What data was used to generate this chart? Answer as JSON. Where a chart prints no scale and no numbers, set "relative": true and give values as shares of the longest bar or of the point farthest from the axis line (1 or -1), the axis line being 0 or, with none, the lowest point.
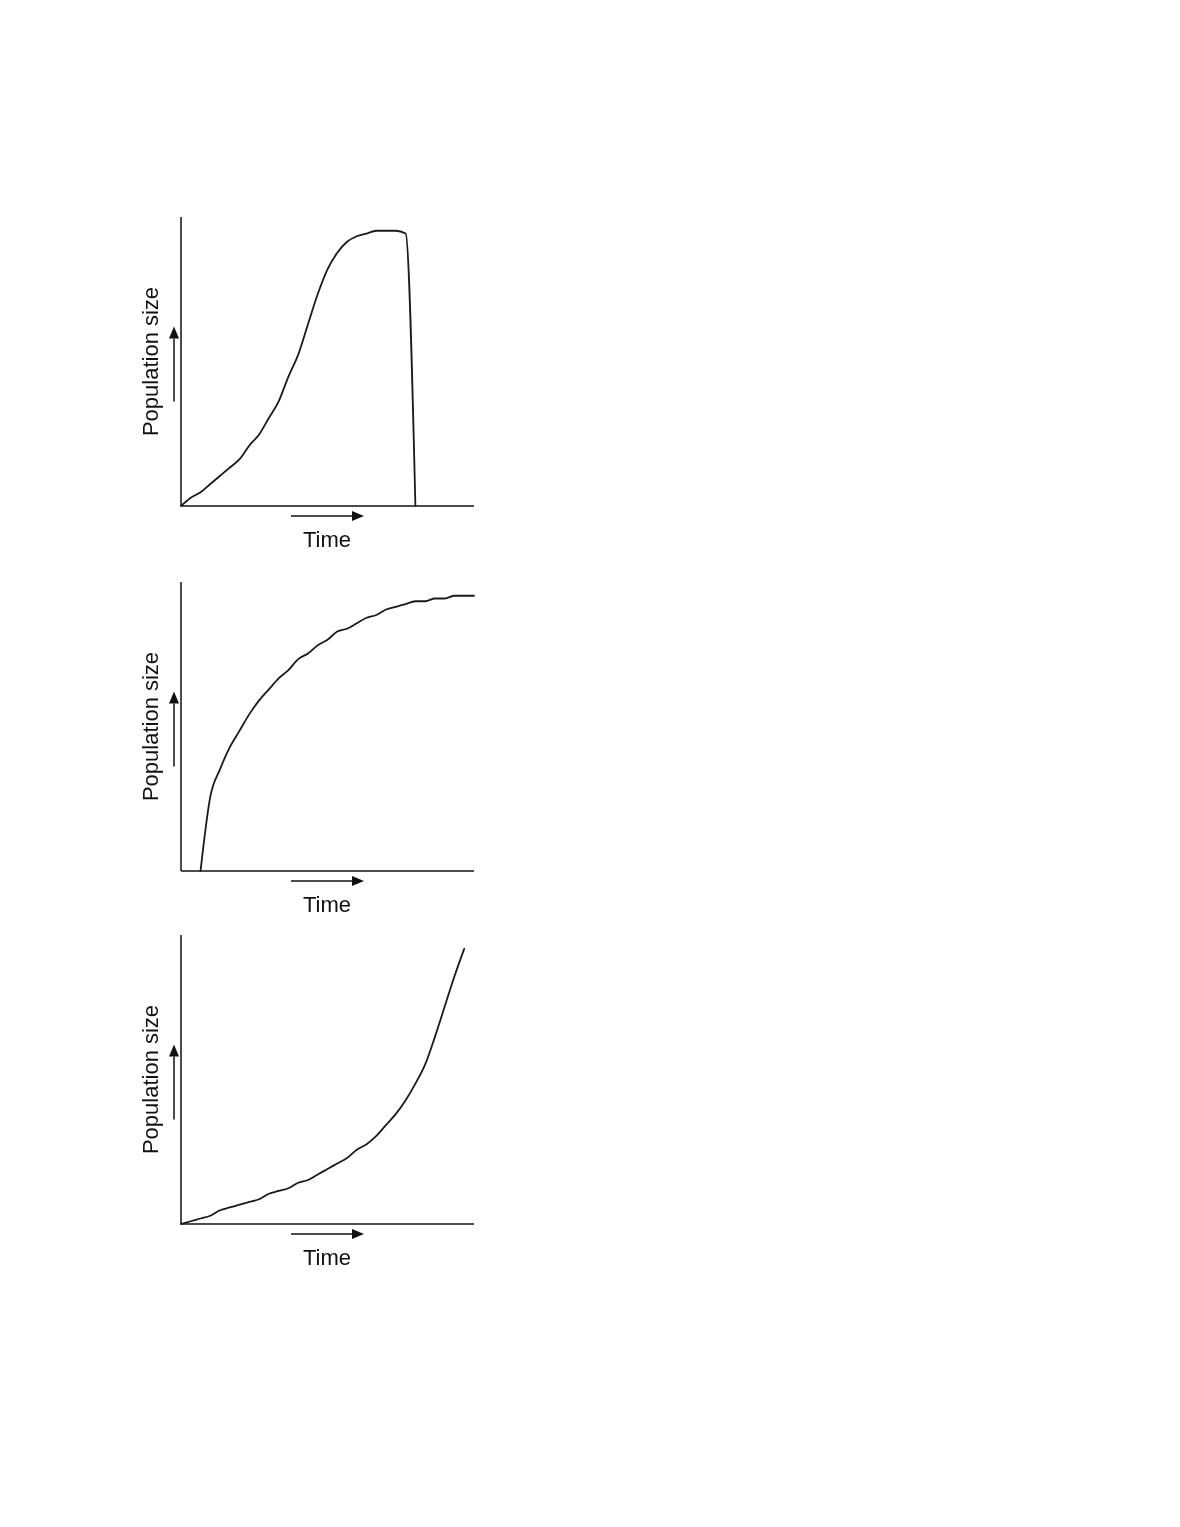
{
  "chart_data": [
    {
      "type": "line",
      "relative": true,
      "xlabel": "Time",
      "ylabel": "Population size",
      "categories": [
        null,
        null,
        null,
        null,
        null,
        null,
        null,
        null,
        null,
        null,
        null,
        null,
        null,
        null,
        null,
        null,
        null,
        null,
        null,
        null,
        null,
        null,
        null,
        null,
        null,
        null,
        null,
        null,
        null,
        null,
        null
      ],
      "series": [
        {
          "color": "#1a1a1a",
          "values": [
            0,
            0.03,
            0.05,
            0.08,
            0.11,
            0.14,
            0.17,
            0.22,
            0.26,
            0.32,
            0.38,
            0.47,
            0.55,
            0.66,
            0.77,
            0.86,
            0.92,
            0.96,
            0.98,
            0.99,
            1,
            1,
            1,
            0.99,
            0,
            null,
            null,
            null,
            null,
            null,
            null
          ]
        }
      ]
    },
    {
      "type": "line",
      "relative": true,
      "xlabel": "Time",
      "ylabel": "Population size",
      "categories": [
        null,
        null,
        null,
        null,
        null,
        null,
        null,
        null,
        null,
        null,
        null,
        null,
        null,
        null,
        null,
        null,
        null,
        null,
        null,
        null,
        null,
        null,
        null,
        null,
        null,
        null,
        null,
        null,
        null,
        null,
        null
      ],
      "series": [
        {
          "color": "#1a1a1a",
          "values": [
            null,
            null,
            0,
            0.27,
            0.37,
            0.45,
            0.51,
            0.57,
            0.62,
            0.66,
            0.7,
            0.73,
            0.77,
            0.79,
            0.82,
            0.84,
            0.87,
            0.88,
            0.9,
            0.92,
            0.93,
            0.95,
            0.96,
            0.97,
            0.98,
            0.98,
            0.99,
            0.99,
            1,
            1,
            1
          ]
        }
      ]
    },
    {
      "type": "line",
      "relative": true,
      "xlabel": "Time",
      "ylabel": "Population size",
      "categories": [
        null,
        null,
        null,
        null,
        null,
        null,
        null,
        null,
        null,
        null,
        null,
        null,
        null,
        null,
        null,
        null,
        null,
        null,
        null,
        null,
        null,
        null,
        null,
        null,
        null,
        null,
        null,
        null,
        null,
        null,
        null
      ],
      "series": [
        {
          "color": "#1a1a1a",
          "values": [
            0,
            0.01,
            0.02,
            0.03,
            0.05,
            0.06,
            0.07,
            0.08,
            0.09,
            0.11,
            0.12,
            0.13,
            0.15,
            0.16,
            0.18,
            0.2,
            0.22,
            0.24,
            0.27,
            0.29,
            0.32,
            0.36,
            0.4,
            0.45,
            0.51,
            0.58,
            0.68,
            0.79,
            0.9,
            1,
            null
          ]
        }
      ]
    }
  ]
}
